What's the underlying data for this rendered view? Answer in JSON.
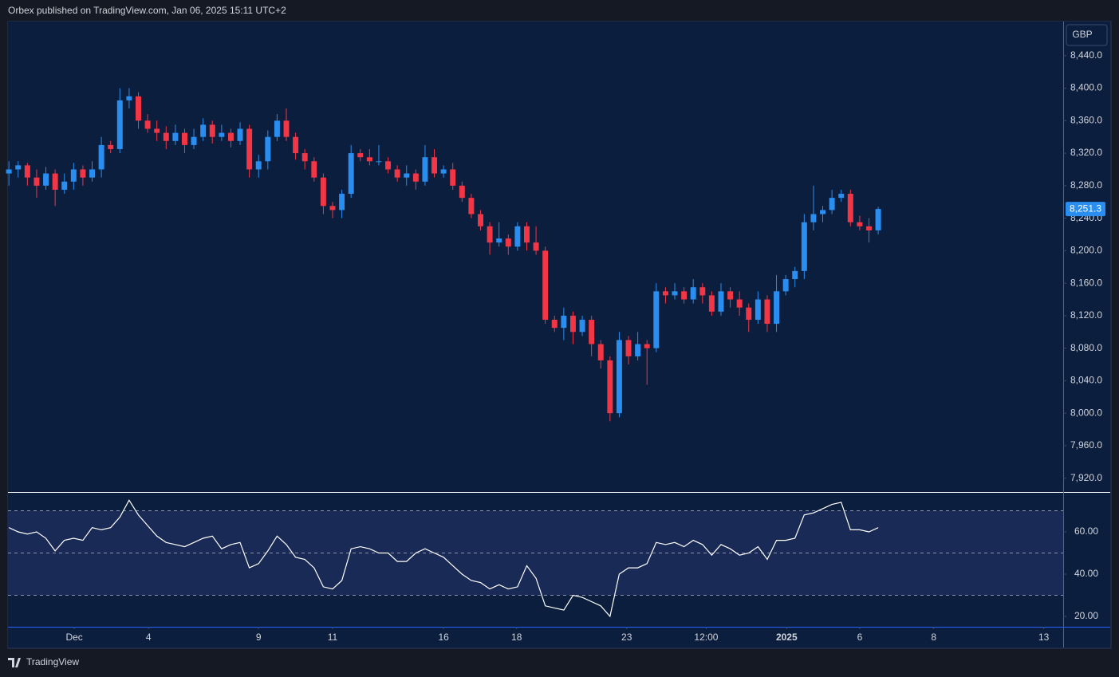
{
  "header": "Orbex published on TradingView.com, Jan 06, 2025 15:11 UTC+2",
  "currency": "GBP",
  "footer": "TradingView",
  "chart_data": {
    "type": "candlestick",
    "xlim": [
      -0.1,
      114
    ],
    "xticks": [
      {
        "value": 7.07,
        "label": "Dec"
      },
      {
        "value": 15.1,
        "label": "4"
      },
      {
        "value": 27.0,
        "label": "9"
      },
      {
        "value": 35.0,
        "label": "11"
      },
      {
        "value": 47.0,
        "label": "16"
      },
      {
        "value": 54.9,
        "label": "18"
      },
      {
        "value": 66.8,
        "label": "23"
      },
      {
        "value": 75.4,
        "label": "12:00"
      },
      {
        "value": 84.1,
        "label": "2025"
      },
      {
        "value": 92.0,
        "label": "6"
      },
      {
        "value": 100.0,
        "label": "8"
      },
      {
        "value": 111.9,
        "label": "13"
      }
    ],
    "ylim": [
      7903,
      8482
    ],
    "yticks": [
      {
        "value": 8440,
        "label": "8,440.0"
      },
      {
        "value": 8400,
        "label": "8,400.0"
      },
      {
        "value": 8360,
        "label": "8,360.0"
      },
      {
        "value": 8320,
        "label": "8,320.0"
      },
      {
        "value": 8280,
        "label": "8,280.0"
      },
      {
        "value": 8240,
        "label": "8,240.0"
      },
      {
        "value": 8200,
        "label": "8,200.0"
      },
      {
        "value": 8160,
        "label": "8,160.0"
      },
      {
        "value": 8120,
        "label": "8,120.0"
      },
      {
        "value": 8080,
        "label": "8,080.0"
      },
      {
        "value": 8040,
        "label": "8,040.0"
      },
      {
        "value": 8000,
        "label": "8,000.0"
      },
      {
        "value": 7960,
        "label": "7,960.0"
      },
      {
        "value": 7920,
        "label": "7,920.0"
      }
    ],
    "up_color": "#2a8ef0",
    "down_color": "#f23645",
    "open": [
      8295,
      8300,
      8305,
      8290,
      8280,
      8295,
      8275,
      8285,
      8300,
      8290,
      8300,
      8330,
      8325,
      8385,
      8390,
      8360,
      8350,
      8345,
      8335,
      8345,
      8330,
      8340,
      8355,
      8340,
      8345,
      8335,
      8350,
      8300,
      8310,
      8340,
      8360,
      8340,
      8320,
      8310,
      8290,
      8255,
      8250,
      8270,
      8320,
      8315,
      8310,
      8310,
      8300,
      8290,
      8295,
      8285,
      8315,
      8295,
      8300,
      8280,
      8265,
      8245,
      8230,
      8210,
      8215,
      8205,
      8230,
      8210,
      8200,
      8115,
      8105,
      8120,
      8100,
      8115,
      8085,
      8065,
      8000,
      8090,
      8070,
      8085,
      8080,
      8150,
      8145,
      8150,
      8140,
      8155,
      8145,
      8125,
      8150,
      8140,
      8130,
      8115,
      8140,
      8110,
      8150,
      8165,
      8175,
      8235,
      8245,
      8250,
      8265,
      8270,
      8235,
      8230,
      8225
    ],
    "high": [
      8310,
      8310,
      8308,
      8300,
      8303,
      8300,
      8295,
      8308,
      8305,
      8310,
      8340,
      8335,
      8400,
      8400,
      8395,
      8368,
      8360,
      8353,
      8355,
      8350,
      8350,
      8363,
      8360,
      8355,
      8350,
      8358,
      8355,
      8318,
      8348,
      8368,
      8375,
      8345,
      8325,
      8315,
      8295,
      8260,
      8275,
      8330,
      8325,
      8325,
      8330,
      8315,
      8305,
      8305,
      8300,
      8330,
      8325,
      8305,
      8308,
      8285,
      8270,
      8250,
      8235,
      8235,
      8220,
      8235,
      8235,
      8230,
      8205,
      8120,
      8130,
      8125,
      8120,
      8120,
      8090,
      8070,
      8100,
      8095,
      8100,
      8090,
      8160,
      8155,
      8160,
      8155,
      8165,
      8160,
      8150,
      8160,
      8155,
      8150,
      8135,
      8150,
      8145,
      8170,
      8170,
      8180,
      8245,
      8280,
      8255,
      8275,
      8275,
      8275,
      8243,
      8240,
      8254
    ],
    "low": [
      8280,
      8290,
      8280,
      8265,
      8275,
      8255,
      8270,
      8275,
      8280,
      8285,
      8290,
      8320,
      8320,
      8375,
      8350,
      8345,
      8335,
      8325,
      8330,
      8320,
      8325,
      8335,
      8332,
      8335,
      8327,
      8330,
      8290,
      8290,
      8300,
      8335,
      8335,
      8312,
      8300,
      8285,
      8245,
      8240,
      8240,
      8265,
      8310,
      8305,
      8305,
      8295,
      8285,
      8280,
      8275,
      8280,
      8290,
      8290,
      8275,
      8260,
      8240,
      8225,
      8195,
      8205,
      8195,
      8200,
      8200,
      8195,
      8110,
      8100,
      8090,
      8085,
      8095,
      8070,
      8055,
      7990,
      7995,
      8060,
      8065,
      8035,
      8075,
      8135,
      8140,
      8135,
      8135,
      8135,
      8120,
      8120,
      8130,
      8120,
      8100,
      8110,
      8100,
      8100,
      8145,
      8155,
      8165,
      8225,
      8235,
      8245,
      8260,
      8230,
      8225,
      8210,
      8220
    ],
    "close": [
      8300,
      8305,
      8290,
      8280,
      8295,
      8275,
      8285,
      8300,
      8290,
      8300,
      8330,
      8325,
      8385,
      8390,
      8360,
      8350,
      8345,
      8335,
      8345,
      8330,
      8340,
      8355,
      8340,
      8345,
      8335,
      8350,
      8300,
      8310,
      8340,
      8360,
      8340,
      8320,
      8310,
      8290,
      8255,
      8250,
      8270,
      8320,
      8315,
      8310,
      8310,
      8300,
      8290,
      8295,
      8285,
      8315,
      8295,
      8300,
      8280,
      8265,
      8245,
      8230,
      8210,
      8215,
      8205,
      8230,
      8210,
      8200,
      8115,
      8105,
      8120,
      8100,
      8115,
      8085,
      8065,
      8000,
      8090,
      8070,
      8085,
      8080,
      8150,
      8145,
      8150,
      8140,
      8155,
      8145,
      8125,
      8150,
      8140,
      8130,
      8115,
      8140,
      8110,
      8150,
      8165,
      8175,
      8235,
      8245,
      8250,
      8265,
      8270,
      8235,
      8230,
      8225,
      8251.3
    ],
    "last_label": "8,251.3",
    "rsi": {
      "type": "line",
      "color": "#ffffff",
      "ylim": [
        15.1,
        78.5
      ],
      "yticks": [
        {
          "value": 60,
          "label": "60.00"
        },
        {
          "value": 40,
          "label": "40.00"
        },
        {
          "value": 20,
          "label": "20.00"
        }
      ],
      "levels": [
        70,
        50,
        30
      ],
      "values": [
        62,
        60,
        59,
        60,
        57,
        51,
        56,
        57,
        56,
        62,
        61,
        62,
        67,
        75,
        68,
        63,
        58,
        55,
        54,
        53,
        55,
        57,
        58,
        52,
        54,
        55,
        43,
        45,
        51,
        58,
        54,
        48,
        47,
        43,
        34,
        33,
        37,
        52,
        53,
        52,
        50,
        50,
        46,
        46,
        50,
        52,
        50,
        48,
        44,
        40,
        37,
        36,
        33,
        35,
        33,
        34,
        44,
        38,
        25,
        24,
        23,
        30,
        29,
        27,
        25,
        20,
        40,
        43,
        43,
        45,
        55,
        54,
        55,
        53,
        56,
        54,
        49,
        54,
        52,
        49,
        50,
        53,
        47,
        56,
        56,
        57,
        68,
        69,
        71,
        73,
        74,
        61,
        61,
        60,
        62
      ]
    }
  }
}
